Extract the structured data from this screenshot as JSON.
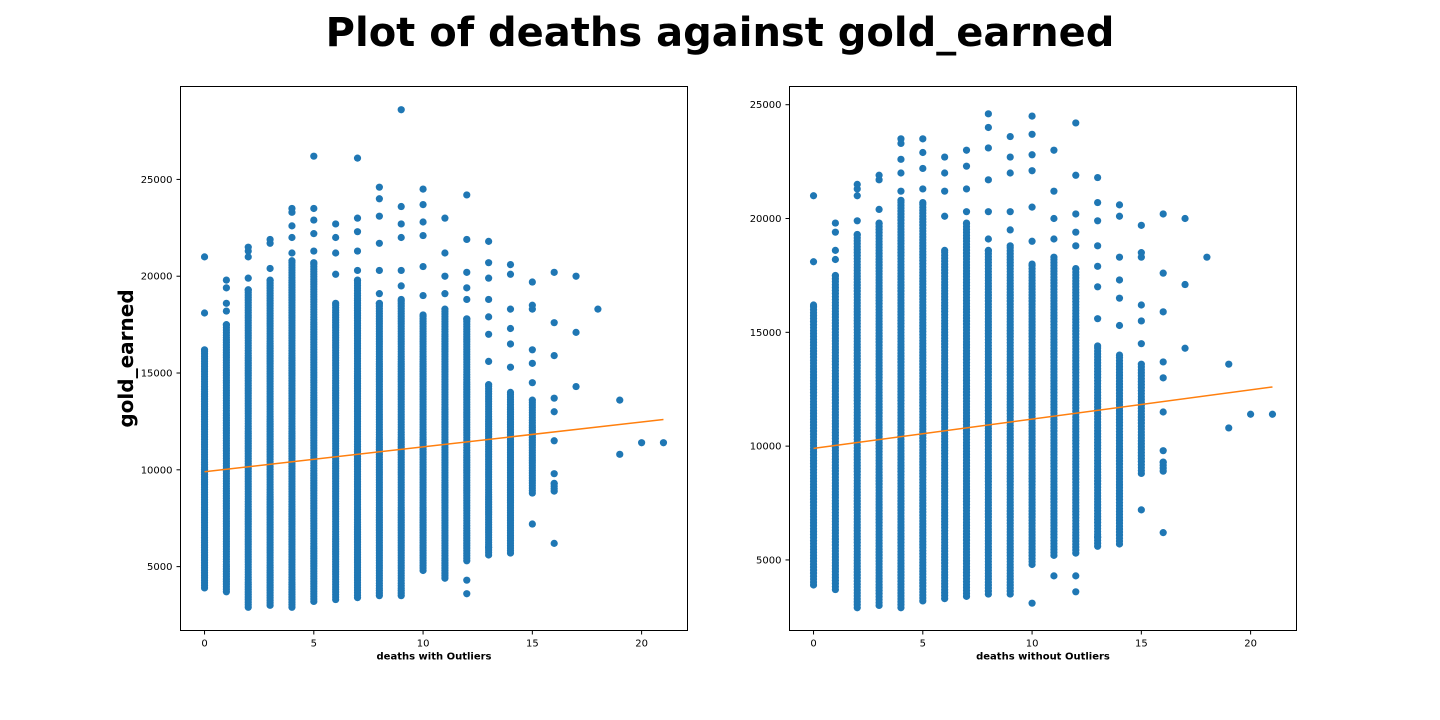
{
  "figure": {
    "title": "Plot of deaths against gold_earned"
  },
  "colors": {
    "points": "#1f77b4",
    "fit_line": "#ff7f0e",
    "axes": "#000000",
    "background": "#ffffff"
  },
  "chart_data": [
    {
      "type": "scatter",
      "title": "",
      "xlabel": "deaths with Outliers",
      "ylabel": "gold_earned",
      "xlim": [
        -1.1,
        22.1
      ],
      "ylim": [
        1700,
        29800
      ],
      "xticks": [
        0,
        5,
        10,
        15,
        20
      ],
      "yticks": [
        5000,
        10000,
        15000,
        20000,
        25000
      ],
      "grid": false,
      "legend": "none",
      "columns": [
        {
          "x": 0,
          "min": 3900,
          "max": 16200,
          "extras": [
            18100,
            21000
          ]
        },
        {
          "x": 1,
          "min": 3700,
          "max": 17500,
          "extras": [
            18200,
            18600,
            19400,
            19800
          ]
        },
        {
          "x": 2,
          "min": 2900,
          "max": 19300,
          "extras": [
            19900,
            21000,
            21300,
            21500
          ]
        },
        {
          "x": 3,
          "min": 3000,
          "max": 19800,
          "extras": [
            20400,
            21700,
            21900
          ]
        },
        {
          "x": 4,
          "min": 2900,
          "max": 20800,
          "extras": [
            21200,
            22000,
            22600,
            23300,
            23500
          ]
        },
        {
          "x": 5,
          "min": 3200,
          "max": 20700,
          "extras": [
            21300,
            22200,
            22900,
            23500,
            26200
          ]
        },
        {
          "x": 6,
          "min": 3300,
          "max": 18600,
          "extras": [
            20100,
            21200,
            22000,
            22700
          ]
        },
        {
          "x": 7,
          "min": 3400,
          "max": 19800,
          "extras": [
            20300,
            21300,
            22300,
            23000,
            26100
          ]
        },
        {
          "x": 8,
          "min": 3500,
          "max": 18600,
          "extras": [
            19100,
            20300,
            21700,
            23100,
            24000,
            24600
          ]
        },
        {
          "x": 9,
          "min": 3500,
          "max": 18800,
          "extras": [
            19500,
            20300,
            22000,
            22700,
            23600,
            28600
          ]
        },
        {
          "x": 10,
          "min": 4800,
          "max": 18000,
          "extras": [
            19000,
            20500,
            22100,
            22800,
            23700,
            24500
          ]
        },
        {
          "x": 11,
          "min": 4400,
          "max": 18300,
          "extras": [
            19100,
            20000,
            21200,
            23000
          ]
        },
        {
          "x": 12,
          "min": 5300,
          "max": 17800,
          "extras": [
            3600,
            4300,
            18800,
            19400,
            20200,
            21900,
            24200
          ]
        },
        {
          "x": 13,
          "min": 5600,
          "max": 14400,
          "extras": [
            6000,
            15600,
            17000,
            17900,
            18800,
            19900,
            20700,
            21800
          ]
        },
        {
          "x": 14,
          "min": 5700,
          "max": 14000,
          "extras": [
            15300,
            16500,
            17300,
            18300,
            20100,
            20600
          ]
        },
        {
          "x": 15,
          "min": 8800,
          "max": 13600,
          "extras": [
            7200,
            14500,
            15500,
            16200,
            18300,
            18500,
            19700
          ]
        },
        {
          "x": 16,
          "min": 8900,
          "max": 9300,
          "extras": [
            6200,
            9800,
            11500,
            13000,
            13700,
            15900,
            17600,
            20200
          ]
        },
        {
          "x": 17,
          "min": 14300,
          "max": 14300,
          "extras": [
            17100,
            20000
          ]
        },
        {
          "x": 18,
          "min": 18300,
          "max": 18300,
          "extras": []
        },
        {
          "x": 19,
          "min": 10800,
          "max": 10800,
          "extras": [
            13600
          ]
        },
        {
          "x": 20,
          "min": 11400,
          "max": 11400,
          "extras": []
        },
        {
          "x": 21,
          "min": 11400,
          "max": 11400,
          "extras": []
        }
      ],
      "fit_line": {
        "x": [
          0,
          21
        ],
        "y": [
          9900,
          12600
        ]
      }
    },
    {
      "type": "scatter",
      "title": "",
      "xlabel": "deaths without Outliers",
      "ylabel": "",
      "xlim": [
        -1.1,
        22.1
      ],
      "ylim": [
        1900,
        25800
      ],
      "xticks": [
        0,
        5,
        10,
        15,
        20
      ],
      "yticks": [
        5000,
        10000,
        15000,
        20000,
        25000
      ],
      "grid": false,
      "legend": "none",
      "columns": [
        {
          "x": 0,
          "min": 3900,
          "max": 16200,
          "extras": [
            18100,
            21000
          ]
        },
        {
          "x": 1,
          "min": 3700,
          "max": 17500,
          "extras": [
            18200,
            18600,
            19400,
            19800
          ]
        },
        {
          "x": 2,
          "min": 2900,
          "max": 19300,
          "extras": [
            19900,
            21000,
            21300,
            21500
          ]
        },
        {
          "x": 3,
          "min": 3000,
          "max": 19800,
          "extras": [
            20400,
            21700,
            21900
          ]
        },
        {
          "x": 4,
          "min": 2900,
          "max": 20800,
          "extras": [
            21200,
            22000,
            22600,
            23300,
            23500
          ]
        },
        {
          "x": 5,
          "min": 3200,
          "max": 20700,
          "extras": [
            21300,
            22200,
            22900,
            23500
          ]
        },
        {
          "x": 6,
          "min": 3300,
          "max": 18600,
          "extras": [
            20100,
            21200,
            22000,
            22700
          ]
        },
        {
          "x": 7,
          "min": 3400,
          "max": 19800,
          "extras": [
            20300,
            21300,
            22300,
            23000
          ]
        },
        {
          "x": 8,
          "min": 3500,
          "max": 18600,
          "extras": [
            19100,
            20300,
            21700,
            23100,
            24000,
            24600
          ]
        },
        {
          "x": 9,
          "min": 3500,
          "max": 18800,
          "extras": [
            19500,
            20300,
            22000,
            22700,
            23600
          ]
        },
        {
          "x": 10,
          "min": 4800,
          "max": 18000,
          "extras": [
            3100,
            19000,
            20500,
            22100,
            22800,
            23700,
            24500
          ]
        },
        {
          "x": 11,
          "min": 5200,
          "max": 18300,
          "extras": [
            4300,
            19100,
            20000,
            21200,
            23000
          ]
        },
        {
          "x": 12,
          "min": 5300,
          "max": 17800,
          "extras": [
            3600,
            4300,
            18800,
            19400,
            20200,
            21900,
            24200
          ]
        },
        {
          "x": 13,
          "min": 5600,
          "max": 14400,
          "extras": [
            6000,
            15600,
            17000,
            17900,
            18800,
            19900,
            20700,
            21800
          ]
        },
        {
          "x": 14,
          "min": 5700,
          "max": 14000,
          "extras": [
            15300,
            16500,
            17300,
            18300,
            20100,
            20600
          ]
        },
        {
          "x": 15,
          "min": 8800,
          "max": 13600,
          "extras": [
            7200,
            14500,
            15500,
            16200,
            18300,
            18500,
            19700
          ]
        },
        {
          "x": 16,
          "min": 8900,
          "max": 9300,
          "extras": [
            6200,
            9800,
            11500,
            13000,
            13700,
            15900,
            17600,
            20200
          ]
        },
        {
          "x": 17,
          "min": 14300,
          "max": 14300,
          "extras": [
            17100,
            20000
          ]
        },
        {
          "x": 18,
          "min": 18300,
          "max": 18300,
          "extras": []
        },
        {
          "x": 19,
          "min": 10800,
          "max": 10800,
          "extras": [
            13600
          ]
        },
        {
          "x": 20,
          "min": 11400,
          "max": 11400,
          "extras": []
        },
        {
          "x": 21,
          "min": 11400,
          "max": 11400,
          "extras": []
        }
      ],
      "fit_line": {
        "x": [
          0,
          21
        ],
        "y": [
          9900,
          12600
        ]
      }
    }
  ]
}
